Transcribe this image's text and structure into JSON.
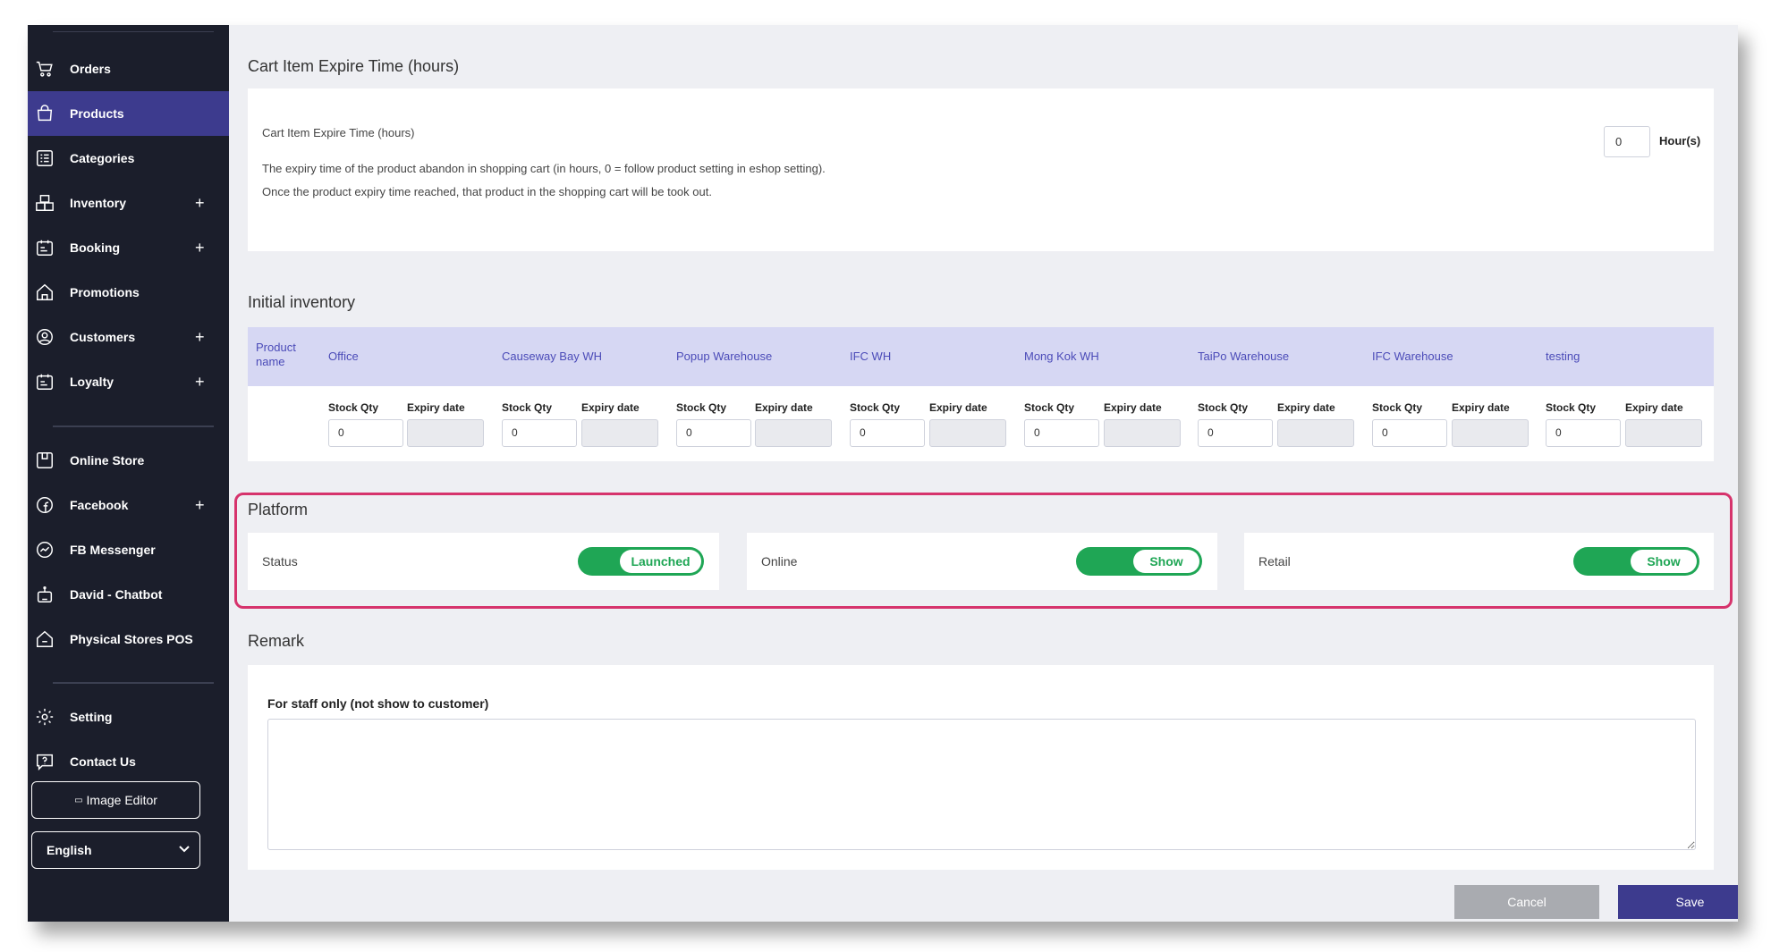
{
  "sidebar": {
    "items": [
      {
        "label": "Orders",
        "icon": "cart-icon",
        "plus": false
      },
      {
        "label": "Products",
        "icon": "bag-icon",
        "plus": false,
        "active": true
      },
      {
        "label": "Categories",
        "icon": "list-icon",
        "plus": false
      },
      {
        "label": "Inventory",
        "icon": "boxes-icon",
        "plus": true
      },
      {
        "label": "Booking",
        "icon": "calendar-icon",
        "plus": true
      },
      {
        "label": "Promotions",
        "icon": "house-tag-icon",
        "plus": false
      },
      {
        "label": "Customers",
        "icon": "user-circle-icon",
        "plus": true
      },
      {
        "label": "Loyalty",
        "icon": "calendar-icon",
        "plus": true
      },
      {
        "label": "Online Store",
        "icon": "store-icon",
        "plus": false
      },
      {
        "label": "Facebook",
        "icon": "facebook-icon",
        "plus": true
      },
      {
        "label": "FB Messenger",
        "icon": "messenger-icon",
        "plus": false
      },
      {
        "label": "David - Chatbot",
        "icon": "chatbot-icon",
        "plus": false
      },
      {
        "label": "Physical Stores POS",
        "icon": "house-icon",
        "plus": false
      },
      {
        "label": "Setting",
        "icon": "gear-icon",
        "plus": false
      },
      {
        "label": "Contact Us",
        "icon": "help-icon",
        "plus": false
      }
    ],
    "plus_symbol": "+",
    "image_editor_label": "Image Editor",
    "language": "English"
  },
  "cart": {
    "section_title": "Cart Item Expire Time (hours)",
    "field_label": "Cart Item Expire Time (hours)",
    "description_1": "The expiry time of the product abandon in shopping cart (in hours, 0 = follow product setting in eshop setting).",
    "description_2": "Once the product expiry time reached, that product in the shopping cart will be took out.",
    "value": "0",
    "unit": "Hour(s)"
  },
  "inventory": {
    "section_title": "Initial inventory",
    "product_name_header": "Product name",
    "stock_qty_label": "Stock Qty",
    "expiry_label": "Expiry date",
    "warehouses": [
      {
        "name": "Office",
        "qty": "0"
      },
      {
        "name": "Causeway Bay WH",
        "qty": "0"
      },
      {
        "name": "Popup Warehouse",
        "qty": "0"
      },
      {
        "name": "IFC WH",
        "qty": "0"
      },
      {
        "name": "Mong Kok WH",
        "qty": "0"
      },
      {
        "name": "TaiPo Warehouse",
        "qty": "0"
      },
      {
        "name": "IFC Warehouse",
        "qty": "0"
      },
      {
        "name": "testing",
        "qty": "0"
      }
    ]
  },
  "platform": {
    "section_title": "Platform",
    "status_label": "Status",
    "status_value": "Launched",
    "online_label": "Online",
    "online_value": "Show",
    "retail_label": "Retail",
    "retail_value": "Show",
    "highlight_color": "#d6336c",
    "toggle_color": "#1fa655"
  },
  "remark": {
    "section_title": "Remark",
    "field_label": "For staff only (not show to customer)",
    "value": ""
  },
  "actions": {
    "cancel": "Cancel",
    "save": "Save"
  }
}
